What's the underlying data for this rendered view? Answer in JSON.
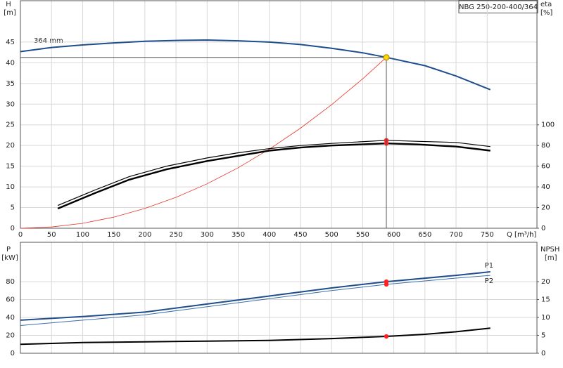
{
  "chart_data": [
    {
      "type": "line",
      "title": "NBG 250-200-400/364",
      "y_label": "H",
      "y_unit": "[m]",
      "y2_label": "eta",
      "y2_unit": "[%]",
      "x_label": "Q [m³/h]",
      "annotation": "364 mm",
      "xlim": [
        0,
        830
      ],
      "ylim": [
        0,
        55
      ],
      "y2lim": [
        0,
        220
      ],
      "xticks": [
        0,
        50,
        100,
        150,
        200,
        250,
        300,
        350,
        400,
        450,
        500,
        550,
        600,
        650,
        700,
        750
      ],
      "yticks": [
        0,
        5,
        10,
        15,
        20,
        25,
        30,
        35,
        40,
        45
      ],
      "y2ticks": [
        0,
        20,
        40,
        60,
        80,
        100
      ],
      "xtick_labels": true,
      "grid": true,
      "duty_point": {
        "x": 588,
        "y": 41.3
      },
      "series": [
        {
          "color": "#1f4e8c",
          "width": 2,
          "x": [
            0,
            50,
            100,
            150,
            200,
            250,
            300,
            350,
            400,
            450,
            500,
            550,
            588,
            650,
            700,
            755
          ],
          "values": [
            42.7,
            43.7,
            44.3,
            44.8,
            45.2,
            45.4,
            45.5,
            45.3,
            45.0,
            44.4,
            43.5,
            42.4,
            41.3,
            39.3,
            36.8,
            33.5
          ]
        },
        {
          "color": "#e8342a",
          "width": 0.8,
          "x": [
            0,
            50,
            100,
            150,
            200,
            250,
            300,
            350,
            400,
            450,
            500,
            550,
            588
          ],
          "values": [
            0,
            0.3,
            1.19,
            2.69,
            4.78,
            7.47,
            10.75,
            14.63,
            19.11,
            24.19,
            29.86,
            36.13,
            41.3
          ]
        },
        {
          "color": "#000000",
          "width": 1.2,
          "axis": "y2",
          "x": [
            60,
            120,
            175,
            235,
            300,
            350,
            400,
            450,
            500,
            588,
            640,
            700,
            755
          ],
          "values": [
            22,
            37,
            50,
            60,
            68,
            73,
            77,
            80,
            82,
            85,
            84,
            83,
            79
          ]
        },
        {
          "color": "#000000",
          "width": 2.4,
          "axis": "y2",
          "x": [
            60,
            120,
            175,
            235,
            300,
            350,
            400,
            450,
            500,
            588,
            640,
            700,
            755
          ],
          "values": [
            19,
            34,
            47,
            57,
            65,
            70,
            75,
            78,
            80,
            82,
            81,
            79,
            75
          ]
        }
      ]
    },
    {
      "type": "line",
      "y_label": "P",
      "y_unit": "[kW]",
      "y2_label": "NPSH",
      "y2_unit": "[m]",
      "xlim": [
        0,
        830
      ],
      "ylim": [
        0,
        124
      ],
      "y2lim": [
        0,
        31
      ],
      "xticks": [
        0,
        50,
        100,
        150,
        200,
        250,
        300,
        350,
        400,
        450,
        500,
        550,
        600,
        650,
        700,
        750
      ],
      "yticks": [
        0,
        20,
        40,
        60,
        80
      ],
      "y2ticks": [
        0,
        5,
        10,
        15,
        20
      ],
      "xtick_labels": false,
      "grid": true,
      "duty_point": {
        "x": 588
      },
      "series": [
        {
          "name": "P1",
          "color": "#1f4e8c",
          "width": 2,
          "x": [
            0,
            100,
            200,
            300,
            400,
            500,
            588,
            700,
            755
          ],
          "values": [
            37,
            41,
            46,
            55,
            64,
            73,
            80,
            87,
            91
          ]
        },
        {
          "name": "P2",
          "color": "#3a6fa8",
          "width": 1,
          "x": [
            0,
            100,
            200,
            300,
            400,
            500,
            588,
            700,
            755
          ],
          "values": [
            31,
            37,
            43,
            52,
            61,
            70,
            77,
            84,
            87
          ]
        },
        {
          "color": "#000000",
          "width": 2,
          "axis": "y2",
          "x": [
            0,
            100,
            200,
            300,
            400,
            500,
            588,
            650,
            700,
            755
          ],
          "values": [
            2.5,
            3.0,
            3.2,
            3.4,
            3.6,
            4.1,
            4.7,
            5.3,
            6.0,
            7.0
          ]
        }
      ]
    }
  ]
}
